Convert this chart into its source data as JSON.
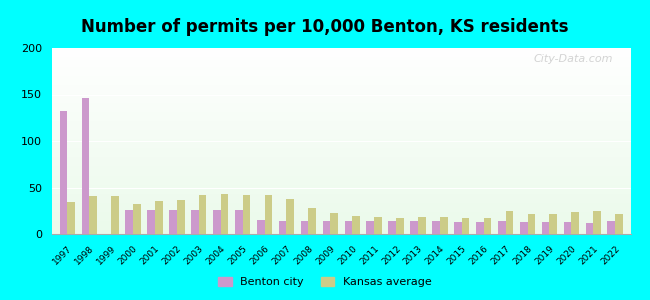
{
  "title": "Number of permits per 10,000 Benton, KS residents",
  "years": [
    1997,
    1998,
    1999,
    2000,
    2001,
    2002,
    2003,
    2004,
    2005,
    2006,
    2007,
    2008,
    2009,
    2010,
    2011,
    2012,
    2013,
    2014,
    2015,
    2016,
    2017,
    2018,
    2019,
    2020,
    2021,
    2022
  ],
  "benton_city": [
    132,
    146,
    0,
    26,
    26,
    26,
    26,
    26,
    26,
    15,
    14,
    14,
    14,
    14,
    14,
    14,
    14,
    14,
    13,
    13,
    14,
    13,
    13,
    13,
    12,
    14
  ],
  "kansas_avg": [
    34,
    41,
    41,
    32,
    35,
    37,
    42,
    43,
    42,
    42,
    38,
    28,
    23,
    19,
    18,
    17,
    18,
    18,
    17,
    17,
    25,
    22,
    21,
    24,
    25,
    22
  ],
  "benton_color": "#cc99cc",
  "kansas_color": "#cccc88",
  "background_outer": "#00ffff",
  "ylim": [
    0,
    200
  ],
  "yticks": [
    0,
    50,
    100,
    150,
    200
  ],
  "bar_width": 0.35,
  "title_fontsize": 12,
  "watermark": "City-Data.com",
  "legend_benton": "Benton city",
  "legend_kansas": "Kansas average"
}
